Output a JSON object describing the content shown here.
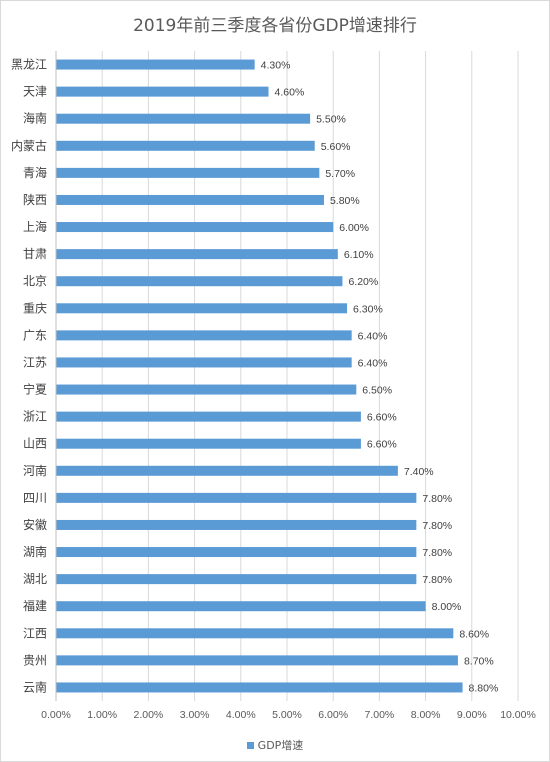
{
  "chart_data": {
    "type": "bar",
    "orientation": "horizontal",
    "title": "2019年前三季度各省份GDP增速排行",
    "categories": [
      "黑龙江",
      "天津",
      "海南",
      "内蒙古",
      "青海",
      "陕西",
      "上海",
      "甘肃",
      "北京",
      "重庆",
      "广东",
      "江苏",
      "宁夏",
      "浙江",
      "山西",
      "河南",
      "四川",
      "安徽",
      "湖南",
      "湖北",
      "福建",
      "江西",
      "贵州",
      "云南"
    ],
    "series": [
      {
        "name": "GDP增速",
        "values": [
          4.3,
          4.6,
          5.5,
          5.6,
          5.7,
          5.8,
          6.0,
          6.1,
          6.2,
          6.3,
          6.4,
          6.4,
          6.5,
          6.6,
          6.6,
          7.4,
          7.8,
          7.8,
          7.8,
          7.8,
          8.0,
          8.6,
          8.7,
          8.8
        ],
        "data_labels": [
          "4.30%",
          "4.60%",
          "5.50%",
          "5.60%",
          "5.70%",
          "5.80%",
          "6.00%",
          "6.10%",
          "6.20%",
          "6.30%",
          "6.40%",
          "6.40%",
          "6.50%",
          "6.60%",
          "6.60%",
          "7.40%",
          "7.80%",
          "7.80%",
          "7.80%",
          "7.80%",
          "8.00%",
          "8.60%",
          "8.70%",
          "8.80%"
        ]
      }
    ],
    "xlim": [
      0,
      10
    ],
    "xticks": [
      0,
      1,
      2,
      3,
      4,
      5,
      6,
      7,
      8,
      9,
      10
    ],
    "xtick_labels": [
      "0.00%",
      "1.00%",
      "2.00%",
      "3.00%",
      "4.00%",
      "5.00%",
      "6.00%",
      "7.00%",
      "8.00%",
      "9.00%",
      "10.00%"
    ],
    "grid": "vertical",
    "legend": "bottom",
    "bar_color": "#5b9bd5",
    "grid_color": "#d9d9d9"
  }
}
